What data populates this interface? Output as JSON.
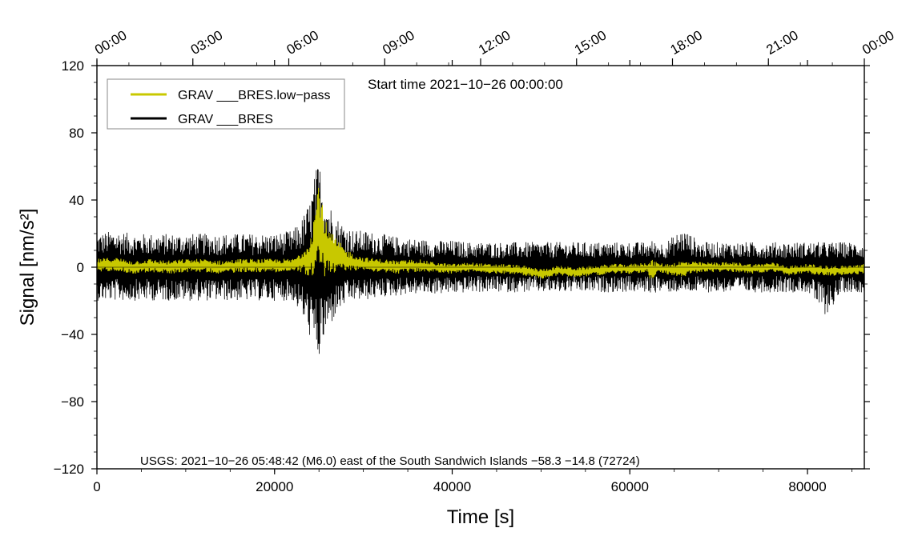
{
  "chart_data": {
    "type": "line",
    "title": "",
    "xlabel": "Time [s]",
    "ylabel": "Signal [nm/s²]",
    "xlim": [
      0,
      86400
    ],
    "ylim": [
      -120,
      120
    ],
    "x_ticks": [
      0,
      20000,
      40000,
      60000,
      80000
    ],
    "x_tick_labels": [
      "0",
      "20000",
      "40000",
      "60000",
      "80000"
    ],
    "y_ticks": [
      -120,
      -80,
      -40,
      0,
      40,
      80,
      120
    ],
    "y_tick_labels": [
      "−120",
      "−80",
      "−40",
      "0",
      "40",
      "80",
      "120"
    ],
    "top_axis_ticks": [
      0,
      10800,
      21600,
      32400,
      43200,
      54000,
      64800,
      75600,
      86400
    ],
    "top_axis_labels": [
      "00:00",
      "03:00",
      "06:00",
      "09:00",
      "12:00",
      "15:00",
      "18:00",
      "21:00",
      "00:00"
    ],
    "grid": false,
    "legend_position": "top-left",
    "annotation": "Start time 2021−10−26 00:00:00",
    "footnote": "USGS: 2021−10−26 05:48:42 (M6.0) east of the South Sandwich Islands −58.3 −14.8 (72724)",
    "series": [
      {
        "name": "GRAV ___BRES.low−pass",
        "color": "#c8c800",
        "x": [
          0,
          2000,
          4000,
          6000,
          8000,
          10000,
          12000,
          14000,
          16000,
          18000,
          20000,
          22000,
          23000,
          24000,
          24500,
          25000,
          25500,
          26000,
          27000,
          28000,
          29000,
          30000,
          32000,
          34000,
          36000,
          38000,
          40000,
          42000,
          44000,
          46000,
          48000,
          50000,
          52000,
          54000,
          56000,
          58000,
          60000,
          62000,
          62500,
          63000,
          64000,
          66000,
          68000,
          70000,
          72000,
          74000,
          76000,
          78000,
          80000,
          82000,
          84000,
          86400
        ],
        "y": [
          1,
          2,
          0,
          1,
          0,
          1,
          1,
          0,
          1,
          1,
          1,
          1,
          3,
          6,
          12,
          25,
          14,
          9,
          7,
          4,
          3,
          2,
          1,
          0,
          1,
          0,
          -1,
          0,
          -1,
          -1,
          -2,
          -4,
          -2,
          -3,
          -2,
          -1,
          -1,
          0,
          -3,
          0,
          -1,
          -1,
          0,
          0,
          0,
          -1,
          0,
          -2,
          -1,
          -2,
          -2,
          -1
        ],
        "envelope": [
          4,
          4,
          4,
          4,
          4,
          4,
          4,
          4,
          4,
          4,
          4,
          4,
          6,
          12,
          22,
          30,
          20,
          14,
          10,
          7,
          5,
          4,
          4,
          4,
          4,
          3,
          3,
          3,
          3,
          3,
          3,
          3,
          3,
          3,
          3,
          3,
          3,
          3,
          8,
          3,
          3,
          5,
          3,
          3,
          3,
          3,
          3,
          3,
          3,
          3,
          3,
          3
        ]
      },
      {
        "name": "GRAV ___BRES",
        "color": "#000000",
        "x": [
          0,
          2000,
          4000,
          6000,
          8000,
          10000,
          12000,
          14000,
          16000,
          18000,
          20000,
          22000,
          23000,
          24000,
          24500,
          25000,
          25500,
          26000,
          27000,
          28000,
          29000,
          30000,
          32000,
          34000,
          36000,
          38000,
          40000,
          42000,
          44000,
          46000,
          48000,
          50000,
          52000,
          54000,
          56000,
          58000,
          60000,
          62000,
          62500,
          63000,
          64000,
          66000,
          68000,
          70000,
          72000,
          74000,
          76000,
          78000,
          80000,
          82000,
          84000,
          86400
        ],
        "envelope_max": [
          20,
          22,
          20,
          20,
          20,
          20,
          20,
          20,
          20,
          20,
          20,
          22,
          28,
          40,
          55,
          65,
          50,
          40,
          30,
          25,
          22,
          22,
          20,
          18,
          17,
          16,
          16,
          15,
          15,
          15,
          15,
          15,
          15,
          15,
          15,
          15,
          15,
          15,
          16,
          15,
          15,
          23,
          15,
          15,
          15,
          15,
          15,
          15,
          15,
          15,
          15,
          15
        ],
        "envelope_min": [
          -20,
          -20,
          -20,
          -20,
          -20,
          -20,
          -20,
          -20,
          -20,
          -20,
          -20,
          -20,
          -28,
          -42,
          -50,
          -56,
          -45,
          -38,
          -28,
          -22,
          -20,
          -20,
          -18,
          -17,
          -16,
          -16,
          -16,
          -15,
          -15,
          -15,
          -15,
          -15,
          -15,
          -15,
          -15,
          -15,
          -15,
          -15,
          -16,
          -15,
          -15,
          -15,
          -15,
          -15,
          -15,
          -15,
          -15,
          -15,
          -15,
          -29,
          -15,
          -15
        ]
      }
    ]
  }
}
